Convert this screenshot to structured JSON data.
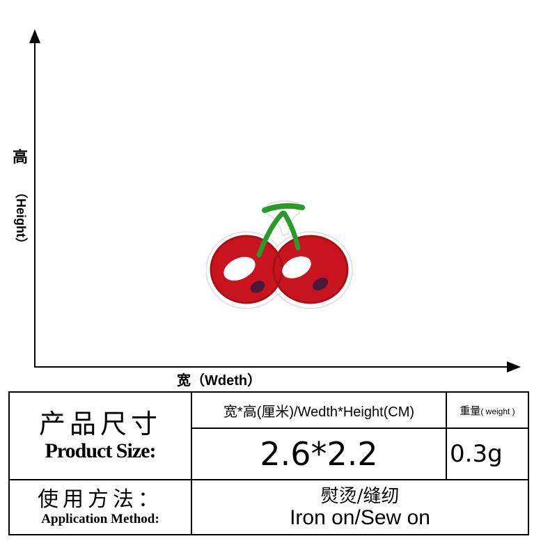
{
  "axes": {
    "y_label_cn": "高",
    "y_label_en": "（Height）",
    "x_label": "宽（Wdeth）"
  },
  "product": {
    "name_icon": "cherry-embroidered-patch-icon",
    "colors": {
      "cherry_red": "#c8141e",
      "stem_green": "#2a9a2a",
      "highlight": "#ffffff",
      "shadow_purple": "#4a1a3a",
      "patch_border": "#e4e4e4"
    }
  },
  "spec_table": {
    "size_label_cn": "产品尺寸",
    "size_label_en": "Product Size:",
    "dimension_label": "宽*高(厘米)/Wedth*Height(CM)",
    "weight_label_cn": "重量",
    "weight_label_en": "( weight )",
    "dimension_value": "2.6*2.2",
    "weight_value": "0.3g",
    "method_label_cn": "使用方法：",
    "method_label_en": "Application Method:",
    "method_value_cn": "熨烫/缝纫",
    "method_value_en": "Iron on/Sew on"
  }
}
